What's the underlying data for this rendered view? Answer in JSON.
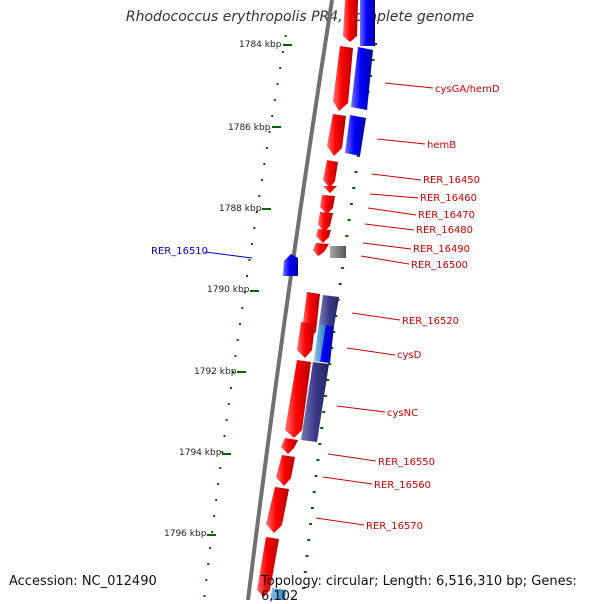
{
  "title": "Rhodococcus erythropolis PR4, complete genome",
  "accession": "Accession: NC_012490",
  "topology": "Topology: circular; Length: 6,516,310 bp; Genes: 6,102",
  "colors": {
    "backbone": "#7a7a7a",
    "strand_forward": "#ff0000",
    "strand_blue": "#0000ff",
    "strand_navy": "#3a3a8c",
    "strand_lightblue": "#3a8ccc",
    "pseudogene": "#707070",
    "tick": "#006400",
    "label_red": "#cc0000",
    "label_blue": "#0000cc"
  },
  "scale_labels": [
    "1784 kbp",
    "1786 kbp",
    "1788 kbp",
    "1790 kbp",
    "1792 kbp",
    "1794 kbp",
    "1796 kbp"
  ],
  "gene_labels": [
    {
      "name": "cysGA/hemD",
      "color": "red"
    },
    {
      "name": "hemB",
      "color": "red"
    },
    {
      "name": "RER_16450",
      "color": "red"
    },
    {
      "name": "RER_16460",
      "color": "red"
    },
    {
      "name": "RER_16470",
      "color": "red"
    },
    {
      "name": "RER_16480",
      "color": "red"
    },
    {
      "name": "RER_16490",
      "color": "red"
    },
    {
      "name": "RER_16500",
      "color": "red"
    },
    {
      "name": "RER_16510",
      "color": "blue"
    },
    {
      "name": "RER_16520",
      "color": "red"
    },
    {
      "name": "cysD",
      "color": "red"
    },
    {
      "name": "cysNC",
      "color": "red"
    },
    {
      "name": "RER_16550",
      "color": "red"
    },
    {
      "name": "RER_16560",
      "color": "red"
    },
    {
      "name": "RER_16570",
      "color": "red"
    }
  ]
}
